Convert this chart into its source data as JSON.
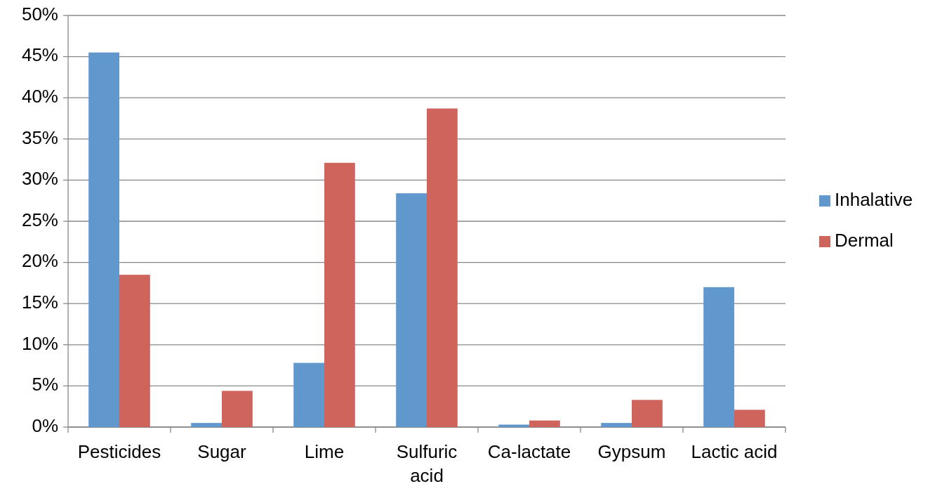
{
  "chart_data": {
    "type": "bar",
    "categories": [
      "Pesticides",
      "Sugar",
      "Lime",
      "Sulfuric acid",
      "Ca-lactate",
      "Gypsum",
      "Lactic acid"
    ],
    "series": [
      {
        "name": "Inhalative",
        "color": "#6097cd",
        "values": [
          45.5,
          0.5,
          7.8,
          28.4,
          0.3,
          0.5,
          17.0
        ]
      },
      {
        "name": "Dermal",
        "color": "#cf645d",
        "values": [
          18.5,
          4.4,
          32.1,
          38.7,
          0.8,
          3.3,
          2.1
        ]
      }
    ],
    "ylim": [
      0,
      50
    ],
    "yticks": [
      {
        "value": 0,
        "label": "0%"
      },
      {
        "value": 5,
        "label": "5%"
      },
      {
        "value": 10,
        "label": "10%"
      },
      {
        "value": 15,
        "label": "15%"
      },
      {
        "value": 20,
        "label": "20%"
      },
      {
        "value": 25,
        "label": "25%"
      },
      {
        "value": 30,
        "label": "30%"
      },
      {
        "value": 35,
        "label": "35%"
      },
      {
        "value": 40,
        "label": "40%"
      },
      {
        "value": 45,
        "label": "45%"
      },
      {
        "value": 50,
        "label": "50%"
      }
    ],
    "grid": "y",
    "legend": "right"
  }
}
